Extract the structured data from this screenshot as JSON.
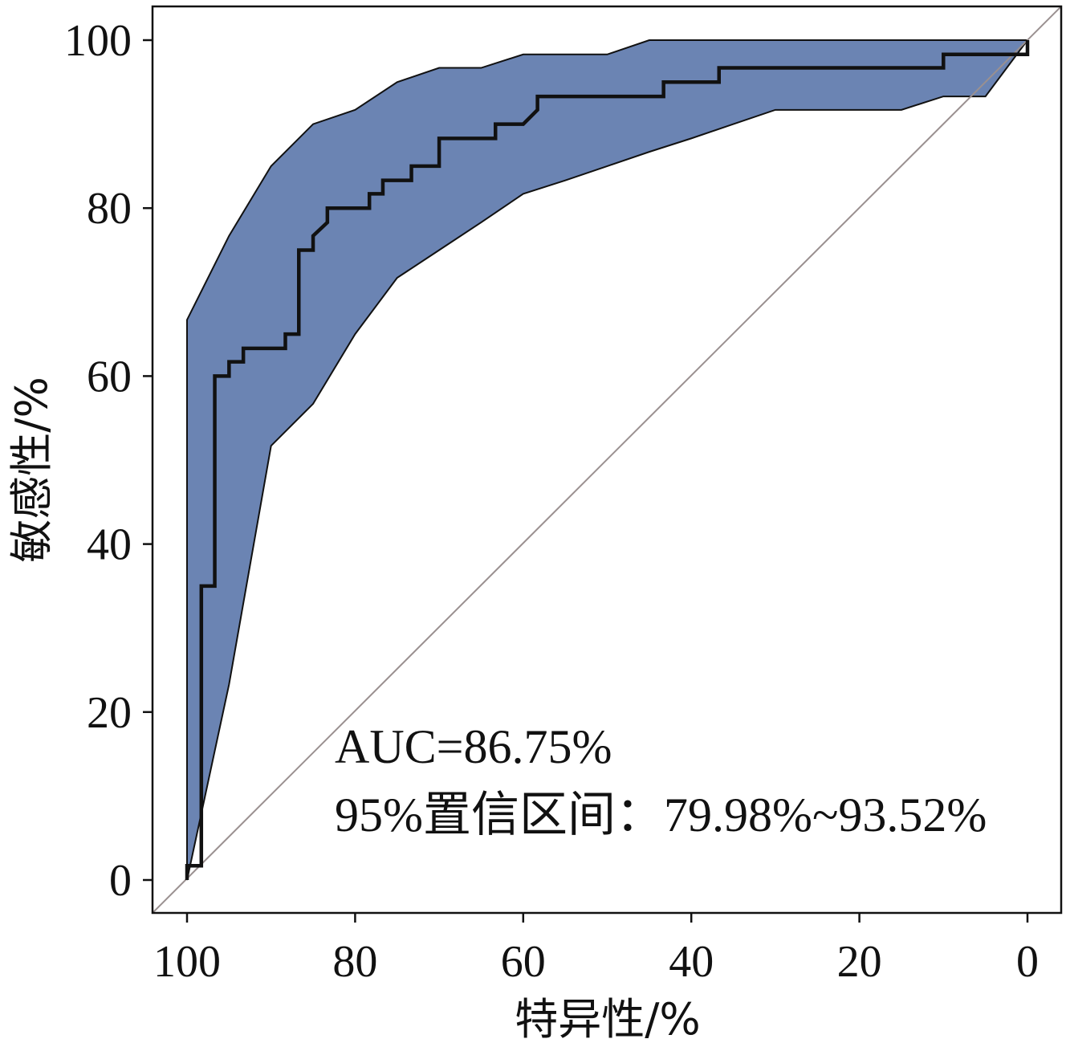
{
  "chart_data": {
    "type": "line",
    "xlabel": "特异性/%",
    "ylabel": "敏感性/%",
    "xlim": [
      100,
      0
    ],
    "ylim": [
      0,
      100
    ],
    "x_reversed": true,
    "x_ticks": [
      100,
      80,
      60,
      40,
      20,
      0
    ],
    "y_ticks": [
      0,
      20,
      40,
      60,
      80,
      100
    ],
    "x_tick_labels": [
      "100",
      "80",
      "60",
      "40",
      "20",
      "0"
    ],
    "y_tick_labels": [
      "0",
      "20",
      "40",
      "60",
      "80",
      "100"
    ],
    "grid": false,
    "annotations": [
      "AUC=86.75%",
      "95%置信区间：79.98%~93.52%"
    ],
    "colors": {
      "ci_band": "#6b84b3",
      "roc_line": "#111111",
      "diagonal": "#9a9090"
    },
    "series": [
      {
        "type": "line",
        "x": [
          100,
          100,
          98.3,
          98.3,
          96.7,
          96.7,
          95,
          95,
          93.3,
          93.3,
          88.3,
          88.3,
          86.7,
          86.7,
          85,
          85,
          83.3,
          83.3,
          78.3,
          78.3,
          76.7,
          76.7,
          73.3,
          73.3,
          70,
          70,
          63.3,
          63.3,
          60,
          58.3,
          58.3,
          43.3,
          43.3,
          36.7,
          36.7,
          10,
          10,
          0,
          0
        ],
        "y": [
          0,
          1.7,
          1.7,
          35,
          35,
          60,
          60,
          61.7,
          61.7,
          63.3,
          63.3,
          65,
          65,
          75,
          75,
          76.7,
          78.3,
          80,
          80,
          81.7,
          81.7,
          83.3,
          83.3,
          85,
          85,
          88.3,
          88.3,
          90,
          90,
          91.7,
          93.3,
          93.3,
          95,
          95,
          96.7,
          96.7,
          98.3,
          98.3,
          100
        ]
      },
      {
        "type": "area-band",
        "upper_x": [
          100,
          100,
          95,
          90,
          85,
          80,
          75,
          70,
          65,
          60,
          50,
          45,
          40,
          35,
          30,
          25,
          20,
          15,
          10,
          5,
          0
        ],
        "upper_y": [
          0,
          66.7,
          76.7,
          85,
          90,
          91.7,
          95,
          96.7,
          96.7,
          98.3,
          98.3,
          100,
          100,
          100,
          100,
          100,
          100,
          100,
          100,
          100,
          100
        ],
        "lower_x": [
          100,
          95,
          90,
          85,
          80,
          75,
          70,
          65,
          60,
          55,
          50,
          45,
          40,
          35,
          30,
          25,
          20,
          15,
          10,
          5,
          0
        ],
        "lower_y": [
          0,
          23.3,
          51.7,
          56.7,
          65,
          71.7,
          75,
          78.3,
          81.7,
          83.3,
          85,
          86.7,
          88.3,
          90,
          91.7,
          91.7,
          91.7,
          91.7,
          93.3,
          93.3,
          100
        ]
      },
      {
        "type": "reference-diagonal",
        "x": [
          100,
          0
        ],
        "y": [
          0,
          100
        ]
      }
    ]
  }
}
